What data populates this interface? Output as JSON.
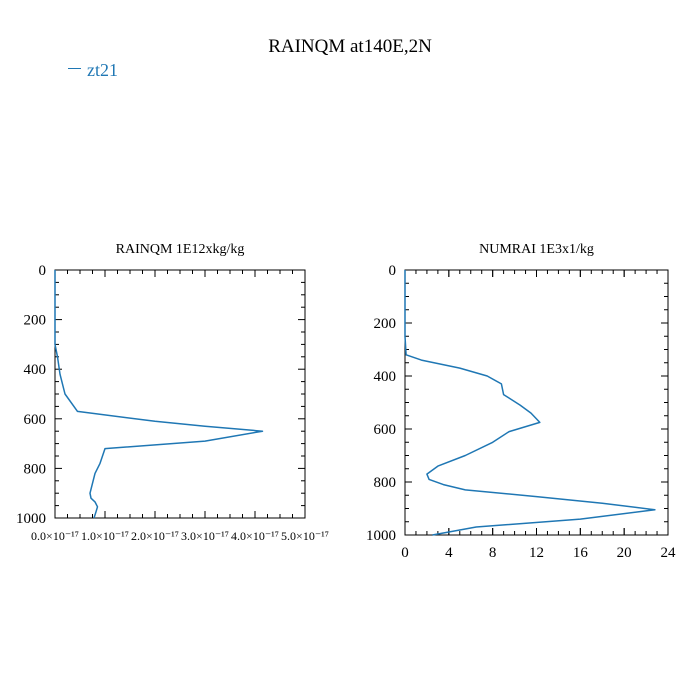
{
  "title": "RAINQM at140E,2N",
  "legend": {
    "label": "zt21",
    "color": "#1f77b4"
  },
  "chart_data": [
    {
      "type": "line",
      "title": "RAINQM  1E12xkg/kg",
      "xlabel": "",
      "ylabel": "",
      "xlim": [
        0.0,
        5e-17
      ],
      "ylim": [
        1000,
        0
      ],
      "y_inverted": true,
      "xtick_labels": [
        "0.0×10⁻¹⁷",
        "1.0×10⁻¹⁷",
        "2.0×10⁻¹⁷",
        "3.0×10⁻¹⁷",
        "4.0×10⁻¹⁷",
        "5.0×10⁻¹⁷"
      ],
      "xticks": [
        0.0,
        1e-17,
        2e-17,
        3e-17,
        4e-17,
        5e-17
      ],
      "yticks": [
        0,
        200,
        400,
        600,
        800,
        1000
      ],
      "color": "#1f77b4",
      "series": [
        {
          "name": "zt21",
          "x": [
            0.0,
            0.0,
            5e-19,
            1e-18,
            2e-18,
            4.5e-18,
            2e-17,
            3e-17,
            4.15e-17,
            3e-17,
            1e-17,
            9e-18,
            8e-18,
            7.5e-18,
            7e-18,
            7.2e-18,
            8e-18,
            8.5e-18,
            8.2e-18,
            7.8e-18
          ],
          "y": [
            0,
            300,
            350,
            420,
            500,
            570,
            610,
            630,
            650,
            690,
            720,
            780,
            820,
            860,
            900,
            920,
            935,
            955,
            975,
            1000
          ]
        }
      ]
    },
    {
      "type": "line",
      "title": "NUMRAI  1E3x1/kg",
      "xlabel": "",
      "ylabel": "",
      "xlim": [
        0,
        24
      ],
      "ylim": [
        1000,
        0
      ],
      "y_inverted": true,
      "xticks": [
        0,
        4,
        8,
        12,
        16,
        20,
        24
      ],
      "xtick_labels": [
        "0",
        "4",
        "8",
        "12",
        "16",
        "20",
        "24"
      ],
      "yticks": [
        0,
        200,
        400,
        600,
        800,
        1000
      ],
      "color": "#1f77b4",
      "series": [
        {
          "name": "zt21",
          "x": [
            0,
            0,
            0.1,
            1.5,
            5.0,
            7.5,
            8.8,
            9.0,
            10.5,
            11.5,
            12.3,
            9.5,
            8.0,
            5.5,
            3.0,
            2.0,
            2.2,
            3.5,
            5.5,
            12.0,
            18.0,
            22.8,
            16.0,
            6.5,
            2.5
          ],
          "y": [
            0,
            250,
            320,
            340,
            370,
            400,
            430,
            470,
            510,
            540,
            575,
            610,
            650,
            700,
            740,
            770,
            790,
            810,
            830,
            855,
            880,
            905,
            940,
            970,
            1000
          ]
        }
      ]
    }
  ]
}
